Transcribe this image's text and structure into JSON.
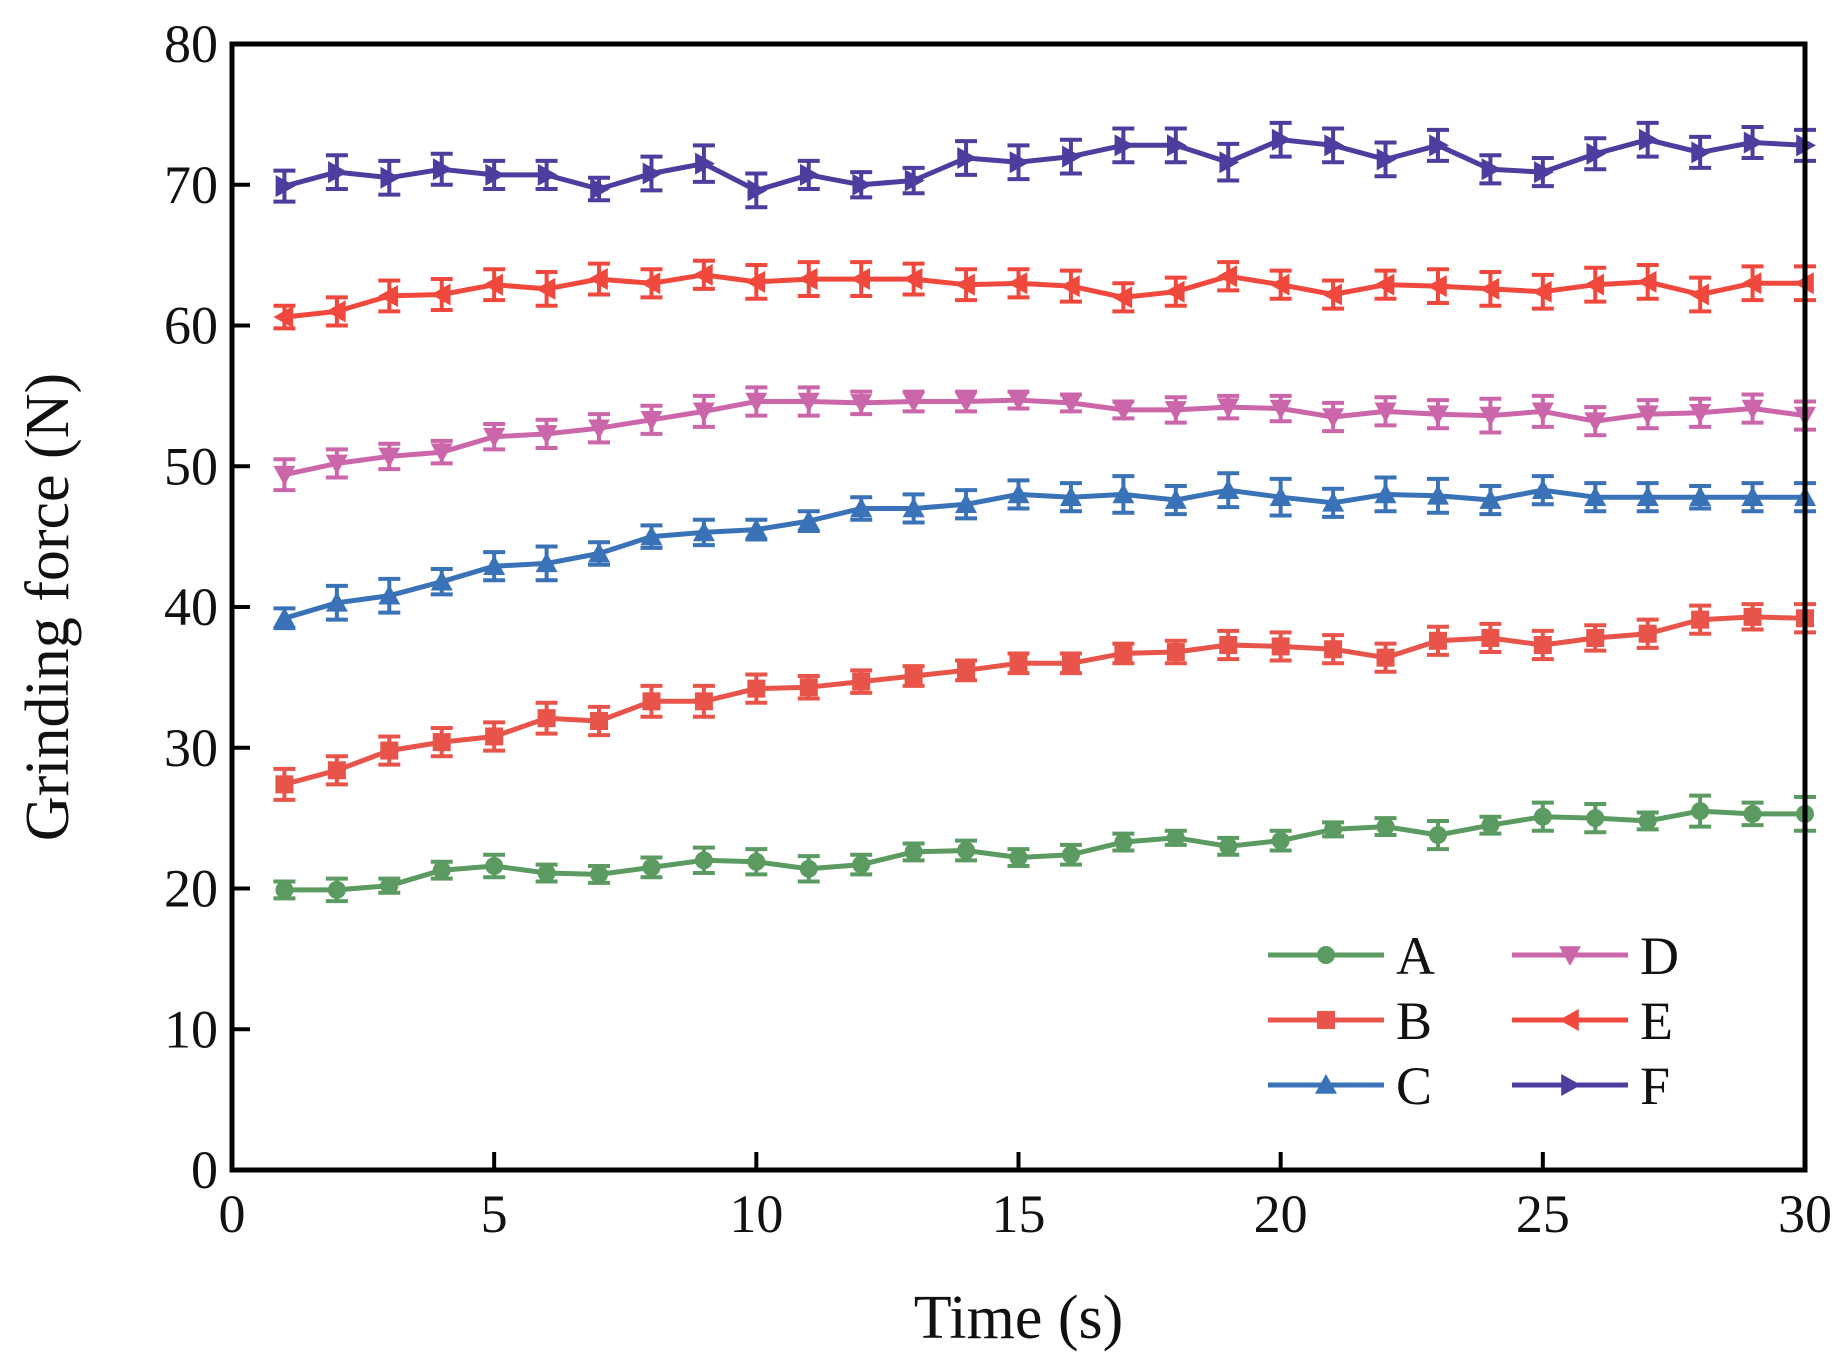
{
  "chart_data": {
    "type": "line",
    "title": "",
    "xlabel": "Time (s)",
    "ylabel": "Grinding force (N)",
    "xlim": [
      0,
      30
    ],
    "ylim": [
      0,
      80
    ],
    "xticks": [
      0,
      5,
      10,
      15,
      20,
      25,
      30
    ],
    "yticks": [
      0,
      10,
      20,
      30,
      40,
      50,
      60,
      70,
      80
    ],
    "grid": false,
    "legend_position": "bottom-right",
    "x": [
      1,
      2,
      3,
      4,
      5,
      6,
      7,
      8,
      9,
      10,
      11,
      12,
      13,
      14,
      15,
      16,
      17,
      18,
      19,
      20,
      21,
      22,
      23,
      24,
      25,
      26,
      27,
      28,
      29,
      30
    ],
    "series": [
      {
        "name": "A",
        "color": "#5b9a61",
        "marker": "circle",
        "values": [
          19.9,
          19.9,
          20.2,
          21.3,
          21.6,
          21.1,
          21.0,
          21.5,
          22.0,
          21.9,
          21.4,
          21.7,
          22.6,
          22.7,
          22.2,
          22.4,
          23.3,
          23.6,
          23.0,
          23.4,
          24.2,
          24.4,
          23.8,
          24.5,
          25.1,
          25.0,
          24.8,
          25.5,
          25.3,
          25.3
        ],
        "errors": [
          0.6,
          0.8,
          0.5,
          0.6,
          0.8,
          0.6,
          0.6,
          0.7,
          0.9,
          0.9,
          0.9,
          0.7,
          0.6,
          0.7,
          0.6,
          0.7,
          0.6,
          0.5,
          0.6,
          0.7,
          0.5,
          0.6,
          1.0,
          0.6,
          1.0,
          1.0,
          0.6,
          1.1,
          0.8,
          1.2
        ]
      },
      {
        "name": "B",
        "color": "#e8544a",
        "marker": "square",
        "values": [
          27.4,
          28.4,
          29.8,
          30.4,
          30.8,
          32.1,
          31.9,
          33.3,
          33.3,
          34.2,
          34.3,
          34.7,
          35.1,
          35.5,
          36.0,
          36.0,
          36.7,
          36.8,
          37.3,
          37.2,
          37.0,
          36.4,
          37.6,
          37.8,
          37.3,
          37.8,
          38.1,
          39.1,
          39.3,
          39.2
        ],
        "errors": [
          1.1,
          1.0,
          1.0,
          1.0,
          1.0,
          1.1,
          1.0,
          1.1,
          1.1,
          1.0,
          0.8,
          0.8,
          0.7,
          0.7,
          0.7,
          0.7,
          0.7,
          0.8,
          1.0,
          1.0,
          1.0,
          1.0,
          1.0,
          1.0,
          1.0,
          0.9,
          1.0,
          1.0,
          0.9,
          1.0
        ]
      },
      {
        "name": "C",
        "color": "#3a72b8",
        "marker": "triangle-up",
        "values": [
          39.2,
          40.3,
          40.8,
          41.8,
          42.9,
          43.1,
          43.8,
          45.0,
          45.3,
          45.5,
          46.1,
          47.0,
          47.0,
          47.3,
          48.0,
          47.8,
          48.0,
          47.6,
          48.3,
          47.8,
          47.4,
          48.0,
          47.9,
          47.6,
          48.3,
          47.8,
          47.8,
          47.8,
          47.8,
          47.8
        ],
        "errors": [
          0.7,
          1.2,
          1.2,
          0.9,
          1.0,
          1.2,
          0.8,
          0.8,
          0.9,
          0.7,
          0.7,
          0.8,
          1.0,
          1.0,
          1.0,
          1.0,
          1.3,
          1.0,
          1.2,
          1.3,
          1.0,
          1.2,
          1.2,
          1.0,
          1.0,
          1.0,
          1.0,
          0.8,
          1.0,
          1.0
        ]
      },
      {
        "name": "D",
        "color": "#cc66aa",
        "marker": "triangle-down",
        "values": [
          49.4,
          50.2,
          50.7,
          51.0,
          52.1,
          52.3,
          52.7,
          53.3,
          53.9,
          54.6,
          54.6,
          54.5,
          54.6,
          54.6,
          54.7,
          54.5,
          54.0,
          54.0,
          54.2,
          54.1,
          53.5,
          53.9,
          53.7,
          53.6,
          53.9,
          53.2,
          53.7,
          53.8,
          54.1,
          53.6
        ],
        "errors": [
          1.1,
          1.0,
          0.9,
          0.8,
          0.9,
          1.0,
          1.0,
          1.0,
          1.1,
          1.0,
          1.0,
          0.8,
          0.7,
          0.7,
          0.6,
          0.6,
          0.6,
          0.9,
          0.8,
          0.9,
          1.0,
          1.0,
          1.0,
          1.2,
          1.1,
          1.0,
          1.0,
          1.0,
          1.0,
          1.0
        ]
      },
      {
        "name": "E",
        "color": "#f0483c",
        "marker": "triangle-left",
        "values": [
          60.6,
          61.0,
          62.1,
          62.2,
          62.9,
          62.6,
          63.3,
          63.0,
          63.6,
          63.1,
          63.3,
          63.3,
          63.3,
          62.9,
          63.0,
          62.8,
          62.0,
          62.4,
          63.5,
          62.9,
          62.2,
          62.9,
          62.8,
          62.6,
          62.4,
          62.9,
          63.1,
          62.2,
          63.0,
          63.0
        ],
        "errors": [
          0.8,
          1.0,
          1.1,
          1.1,
          1.1,
          1.2,
          1.1,
          1.0,
          1.0,
          1.2,
          1.2,
          1.2,
          1.1,
          1.1,
          1.0,
          1.1,
          1.0,
          1.0,
          1.0,
          1.0,
          1.0,
          1.0,
          1.2,
          1.2,
          1.2,
          1.2,
          1.2,
          1.2,
          1.2,
          1.2
        ]
      },
      {
        "name": "F",
        "color": "#4c3d9e",
        "marker": "triangle-right",
        "values": [
          69.9,
          70.9,
          70.5,
          71.1,
          70.7,
          70.7,
          69.7,
          70.8,
          71.5,
          69.6,
          70.7,
          70.0,
          70.3,
          71.9,
          71.6,
          72.0,
          72.8,
          72.8,
          71.6,
          73.2,
          72.8,
          71.8,
          72.8,
          71.1,
          70.9,
          72.2,
          73.2,
          72.3,
          73.0,
          72.8
        ],
        "errors": [
          1.1,
          1.2,
          1.2,
          1.1,
          1.0,
          1.0,
          0.8,
          1.2,
          1.3,
          1.2,
          1.0,
          0.9,
          0.9,
          1.2,
          1.2,
          1.2,
          1.2,
          1.2,
          1.3,
          1.2,
          1.2,
          1.2,
          1.1,
          1.0,
          1.0,
          1.1,
          1.2,
          1.1,
          1.1,
          1.1
        ]
      }
    ]
  }
}
